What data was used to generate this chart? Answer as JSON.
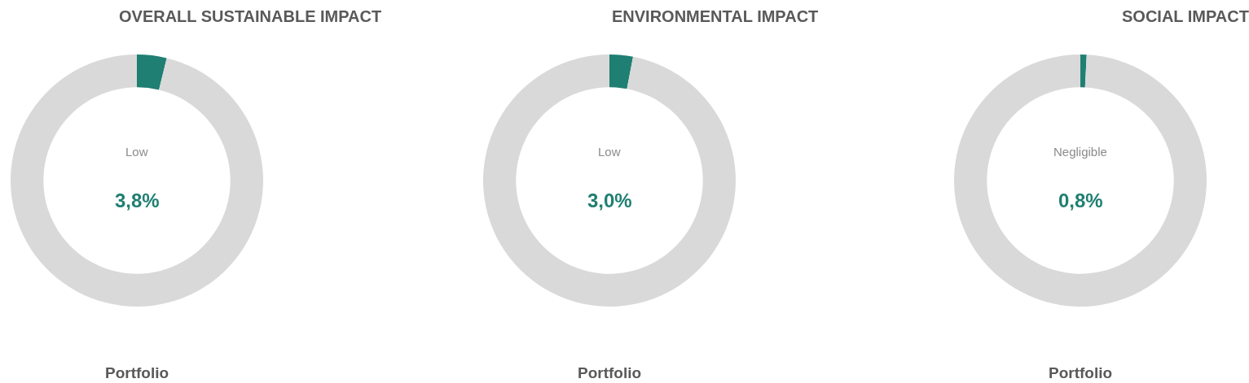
{
  "chart_data": [
    {
      "type": "donut",
      "title": "OVERALL SUSTAINABLE IMPACT",
      "categories": [
        null,
        null
      ],
      "values": [
        3.8,
        96.2
      ],
      "colors": [
        "#1f7f72",
        "#d9d9d9"
      ],
      "annotations": [
        "Low",
        "3,8%"
      ],
      "xlabel": "Portfolio",
      "legend": false
    },
    {
      "type": "donut",
      "title": "ENVIRONMENTAL IMPACT",
      "categories": [
        null,
        null
      ],
      "values": [
        3.0,
        97.0
      ],
      "colors": [
        "#1f7f72",
        "#d9d9d9"
      ],
      "annotations": [
        "Low",
        "3,0%"
      ],
      "xlabel": "Portfolio",
      "legend": false
    },
    {
      "type": "donut",
      "title": "SOCIAL IMPACT",
      "categories": [
        null,
        null
      ],
      "values": [
        0.8,
        99.2
      ],
      "colors": [
        "#1f7f72",
        "#d9d9d9"
      ],
      "annotations": [
        "Negligible",
        "0,8%"
      ],
      "xlabel": "Portfolio",
      "legend": false
    }
  ]
}
